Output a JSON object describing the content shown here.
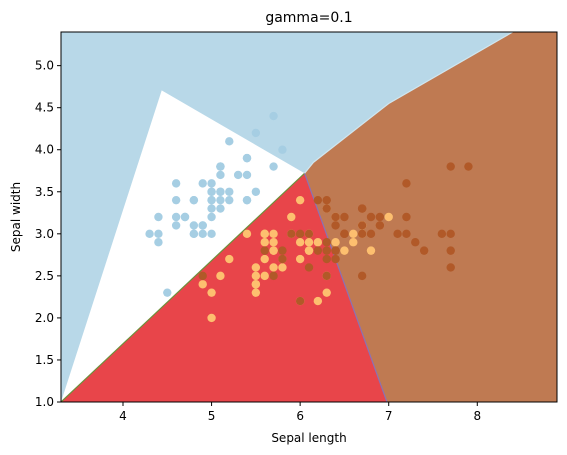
{
  "chart_data": {
    "type": "scatter",
    "subtype": "classifier-decision-regions",
    "title": "gamma=0.1",
    "xlabel": "Sepal length",
    "ylabel": "Sepal width",
    "xlim": [
      3.3,
      8.9
    ],
    "ylim": [
      1.0,
      5.4
    ],
    "xticks": [
      4,
      5,
      6,
      7,
      8
    ],
    "yticks": [
      1.0,
      1.5,
      2.0,
      2.5,
      3.0,
      3.5,
      4.0,
      4.5,
      5.0
    ],
    "xtick_labels": [
      "4",
      "5",
      "6",
      "7",
      "8"
    ],
    "ytick_labels": [
      "1.0",
      "1.5",
      "2.0",
      "2.5",
      "3.0",
      "3.5",
      "4.0",
      "4.5",
      "5.0"
    ],
    "grid": false,
    "legend": "none",
    "region_colors": {
      "class_0": "#b8d8e8",
      "class_1": "#e8454a",
      "class_2": "#bf7a52"
    },
    "regions": [
      {
        "class": "class_0",
        "polygon": [
          [
            3.3,
            1.0
          ],
          [
            3.3,
            5.4
          ],
          [
            4.65,
            5.4
          ]
        ]
      },
      {
        "class": "class_1",
        "polygon": [
          [
            3.3,
            1.0
          ],
          [
            6.05,
            3.72
          ],
          [
            6.98,
            1.0
          ]
        ]
      },
      {
        "class": "class_2",
        "polygon": [
          [
            6.98,
            1.0
          ],
          [
            6.05,
            3.72
          ],
          [
            6.15,
            3.85
          ],
          [
            7.0,
            4.55
          ],
          [
            8.4,
            5.4
          ],
          [
            8.9,
            5.4
          ],
          [
            8.9,
            1.0
          ]
        ]
      },
      {
        "class": "class_0",
        "polygon": [
          [
            3.3,
            5.4
          ],
          [
            6.05,
            3.72
          ],
          [
            6.15,
            3.85
          ],
          [
            7.0,
            4.55
          ],
          [
            8.4,
            5.4
          ]
        ]
      }
    ],
    "boundaries": [
      {
        "color": "#6e8f3a",
        "points": [
          [
            3.3,
            1.0
          ],
          [
            6.05,
            3.72
          ]
        ]
      },
      {
        "color": "#8a72b5",
        "points": [
          [
            6.05,
            3.72
          ],
          [
            6.98,
            1.0
          ]
        ]
      },
      {
        "color": "#d0e6ef",
        "points": [
          [
            6.05,
            3.72
          ],
          [
            6.15,
            3.85
          ],
          [
            7.0,
            4.55
          ],
          [
            8.4,
            5.4
          ]
        ]
      }
    ],
    "series": [
      {
        "color": "#a6cee3",
        "points": [
          [
            5.1,
            3.5
          ],
          [
            4.9,
            3.0
          ],
          [
            4.7,
            3.2
          ],
          [
            4.6,
            3.1
          ],
          [
            5.0,
            3.6
          ],
          [
            5.4,
            3.9
          ],
          [
            4.6,
            3.4
          ],
          [
            5.0,
            3.4
          ],
          [
            4.4,
            2.9
          ],
          [
            4.9,
            3.1
          ],
          [
            5.4,
            3.7
          ],
          [
            4.8,
            3.4
          ],
          [
            4.8,
            3.0
          ],
          [
            4.3,
            3.0
          ],
          [
            5.8,
            4.0
          ],
          [
            5.7,
            4.4
          ],
          [
            5.4,
            3.9
          ],
          [
            5.1,
            3.5
          ],
          [
            5.7,
            3.8
          ],
          [
            5.1,
            3.8
          ],
          [
            5.4,
            3.4
          ],
          [
            5.1,
            3.7
          ],
          [
            4.6,
            3.6
          ],
          [
            5.1,
            3.3
          ],
          [
            4.8,
            3.4
          ],
          [
            5.0,
            3.0
          ],
          [
            5.0,
            3.4
          ],
          [
            5.2,
            3.5
          ],
          [
            5.2,
            3.4
          ],
          [
            4.7,
            3.2
          ],
          [
            4.8,
            3.1
          ],
          [
            5.4,
            3.4
          ],
          [
            5.2,
            4.1
          ],
          [
            5.5,
            4.2
          ],
          [
            4.9,
            3.1
          ],
          [
            5.0,
            3.2
          ],
          [
            5.5,
            3.5
          ],
          [
            4.9,
            3.6
          ],
          [
            4.4,
            3.0
          ],
          [
            5.1,
            3.4
          ],
          [
            5.0,
            3.5
          ],
          [
            4.5,
            2.3
          ],
          [
            4.4,
            3.2
          ],
          [
            5.0,
            3.5
          ],
          [
            5.1,
            3.8
          ],
          [
            4.8,
            3.0
          ],
          [
            5.1,
            3.8
          ],
          [
            4.6,
            3.2
          ],
          [
            5.3,
            3.7
          ],
          [
            5.0,
            3.3
          ]
        ]
      },
      {
        "color": "#fdbf6f",
        "points": [
          [
            7.0,
            3.2
          ],
          [
            6.4,
            3.2
          ],
          [
            6.9,
            3.1
          ],
          [
            5.5,
            2.3
          ],
          [
            6.5,
            2.8
          ],
          [
            5.7,
            2.8
          ],
          [
            6.3,
            3.3
          ],
          [
            4.9,
            2.4
          ],
          [
            6.6,
            2.9
          ],
          [
            5.2,
            2.7
          ],
          [
            5.0,
            2.0
          ],
          [
            5.9,
            3.0
          ],
          [
            6.0,
            2.2
          ],
          [
            6.1,
            2.9
          ],
          [
            5.6,
            2.9
          ],
          [
            6.7,
            3.1
          ],
          [
            5.6,
            3.0
          ],
          [
            5.8,
            2.7
          ],
          [
            6.2,
            2.2
          ],
          [
            5.6,
            2.5
          ],
          [
            5.9,
            3.2
          ],
          [
            6.1,
            2.8
          ],
          [
            6.3,
            2.5
          ],
          [
            6.1,
            2.8
          ],
          [
            6.4,
            2.9
          ],
          [
            6.6,
            3.0
          ],
          [
            6.8,
            2.8
          ],
          [
            6.7,
            3.0
          ],
          [
            6.0,
            2.9
          ],
          [
            5.7,
            2.6
          ],
          [
            5.5,
            2.4
          ],
          [
            5.5,
            2.4
          ],
          [
            5.8,
            2.7
          ],
          [
            6.0,
            2.7
          ],
          [
            5.4,
            3.0
          ],
          [
            6.0,
            3.4
          ],
          [
            6.7,
            3.1
          ],
          [
            6.3,
            2.3
          ],
          [
            5.6,
            3.0
          ],
          [
            5.5,
            2.5
          ],
          [
            5.5,
            2.6
          ],
          [
            6.1,
            3.0
          ],
          [
            5.8,
            2.6
          ],
          [
            5.0,
            2.3
          ],
          [
            5.6,
            2.7
          ],
          [
            5.7,
            3.0
          ],
          [
            5.7,
            2.9
          ],
          [
            6.2,
            2.9
          ],
          [
            5.1,
            2.5
          ],
          [
            5.7,
            2.8
          ]
        ]
      },
      {
        "color": "#b15928",
        "points": [
          [
            6.3,
            3.3
          ],
          [
            5.8,
            2.7
          ],
          [
            7.1,
            3.0
          ],
          [
            6.3,
            2.9
          ],
          [
            6.5,
            3.0
          ],
          [
            7.6,
            3.0
          ],
          [
            4.9,
            2.5
          ],
          [
            7.3,
            2.9
          ],
          [
            6.7,
            2.5
          ],
          [
            7.2,
            3.6
          ],
          [
            6.5,
            3.2
          ],
          [
            6.4,
            2.7
          ],
          [
            6.8,
            3.0
          ],
          [
            5.7,
            2.5
          ],
          [
            5.8,
            2.8
          ],
          [
            6.4,
            3.2
          ],
          [
            6.5,
            3.0
          ],
          [
            7.7,
            3.8
          ],
          [
            7.7,
            2.6
          ],
          [
            6.0,
            2.2
          ],
          [
            6.9,
            3.2
          ],
          [
            5.6,
            2.8
          ],
          [
            7.7,
            2.8
          ],
          [
            6.3,
            2.7
          ],
          [
            6.7,
            3.3
          ],
          [
            7.2,
            3.2
          ],
          [
            6.2,
            2.8
          ],
          [
            6.1,
            3.0
          ],
          [
            6.4,
            2.8
          ],
          [
            7.2,
            3.0
          ],
          [
            7.4,
            2.8
          ],
          [
            7.9,
            3.8
          ],
          [
            6.4,
            2.8
          ],
          [
            6.3,
            2.8
          ],
          [
            6.1,
            2.6
          ],
          [
            7.7,
            3.0
          ],
          [
            6.3,
            3.4
          ],
          [
            6.4,
            3.1
          ],
          [
            6.0,
            3.0
          ],
          [
            6.9,
            3.1
          ],
          [
            6.7,
            3.1
          ],
          [
            6.9,
            3.1
          ],
          [
            5.8,
            2.7
          ],
          [
            6.8,
            3.2
          ],
          [
            6.7,
            3.3
          ],
          [
            6.7,
            3.0
          ],
          [
            6.3,
            2.5
          ],
          [
            6.5,
            3.0
          ],
          [
            6.2,
            3.4
          ],
          [
            5.9,
            3.0
          ]
        ]
      }
    ]
  }
}
